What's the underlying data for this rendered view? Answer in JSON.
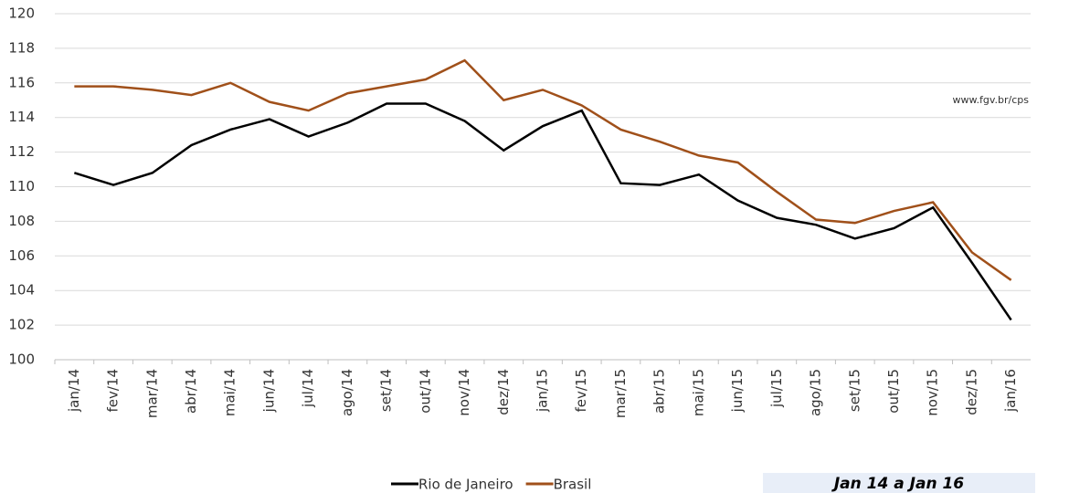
{
  "chart_data": {
    "type": "line",
    "categories": [
      "jan/14",
      "fev/14",
      "mar/14",
      "abr/14",
      "mai/14",
      "jun/14",
      "jul/14",
      "ago/14",
      "set/14",
      "out/14",
      "nov/14",
      "dez/14",
      "jan/15",
      "fev/15",
      "mar/15",
      "abr/15",
      "mai/15",
      "jun/15",
      "jul/15",
      "ago/15",
      "set/15",
      "out/15",
      "nov/15",
      "dez/15",
      "jan/16"
    ],
    "series": [
      {
        "name": "Rio de Janeiro",
        "color": "#000000",
        "values": [
          110.8,
          110.1,
          110.8,
          112.4,
          113.3,
          113.9,
          112.9,
          113.7,
          114.8,
          114.8,
          113.8,
          112.1,
          113.5,
          114.4,
          110.2,
          110.1,
          110.7,
          109.2,
          108.2,
          107.8,
          107.0,
          107.6,
          108.8,
          105.6,
          102.3
        ]
      },
      {
        "name": "Brasil",
        "color": "#a0501a",
        "values": [
          115.8,
          115.8,
          115.6,
          115.3,
          116.0,
          114.9,
          114.4,
          115.4,
          115.8,
          116.2,
          117.3,
          115.0,
          115.6,
          114.7,
          113.3,
          112.6,
          111.8,
          111.4,
          109.7,
          108.1,
          107.9,
          108.6,
          109.1,
          106.2,
          104.6
        ]
      }
    ],
    "ylim": [
      100,
      120
    ],
    "yticks": [
      100,
      102,
      104,
      106,
      108,
      110,
      112,
      114,
      116,
      118,
      120
    ],
    "grid": true,
    "source": "www.fgv.br/cps",
    "period": "Jan 14 a Jan 16"
  }
}
